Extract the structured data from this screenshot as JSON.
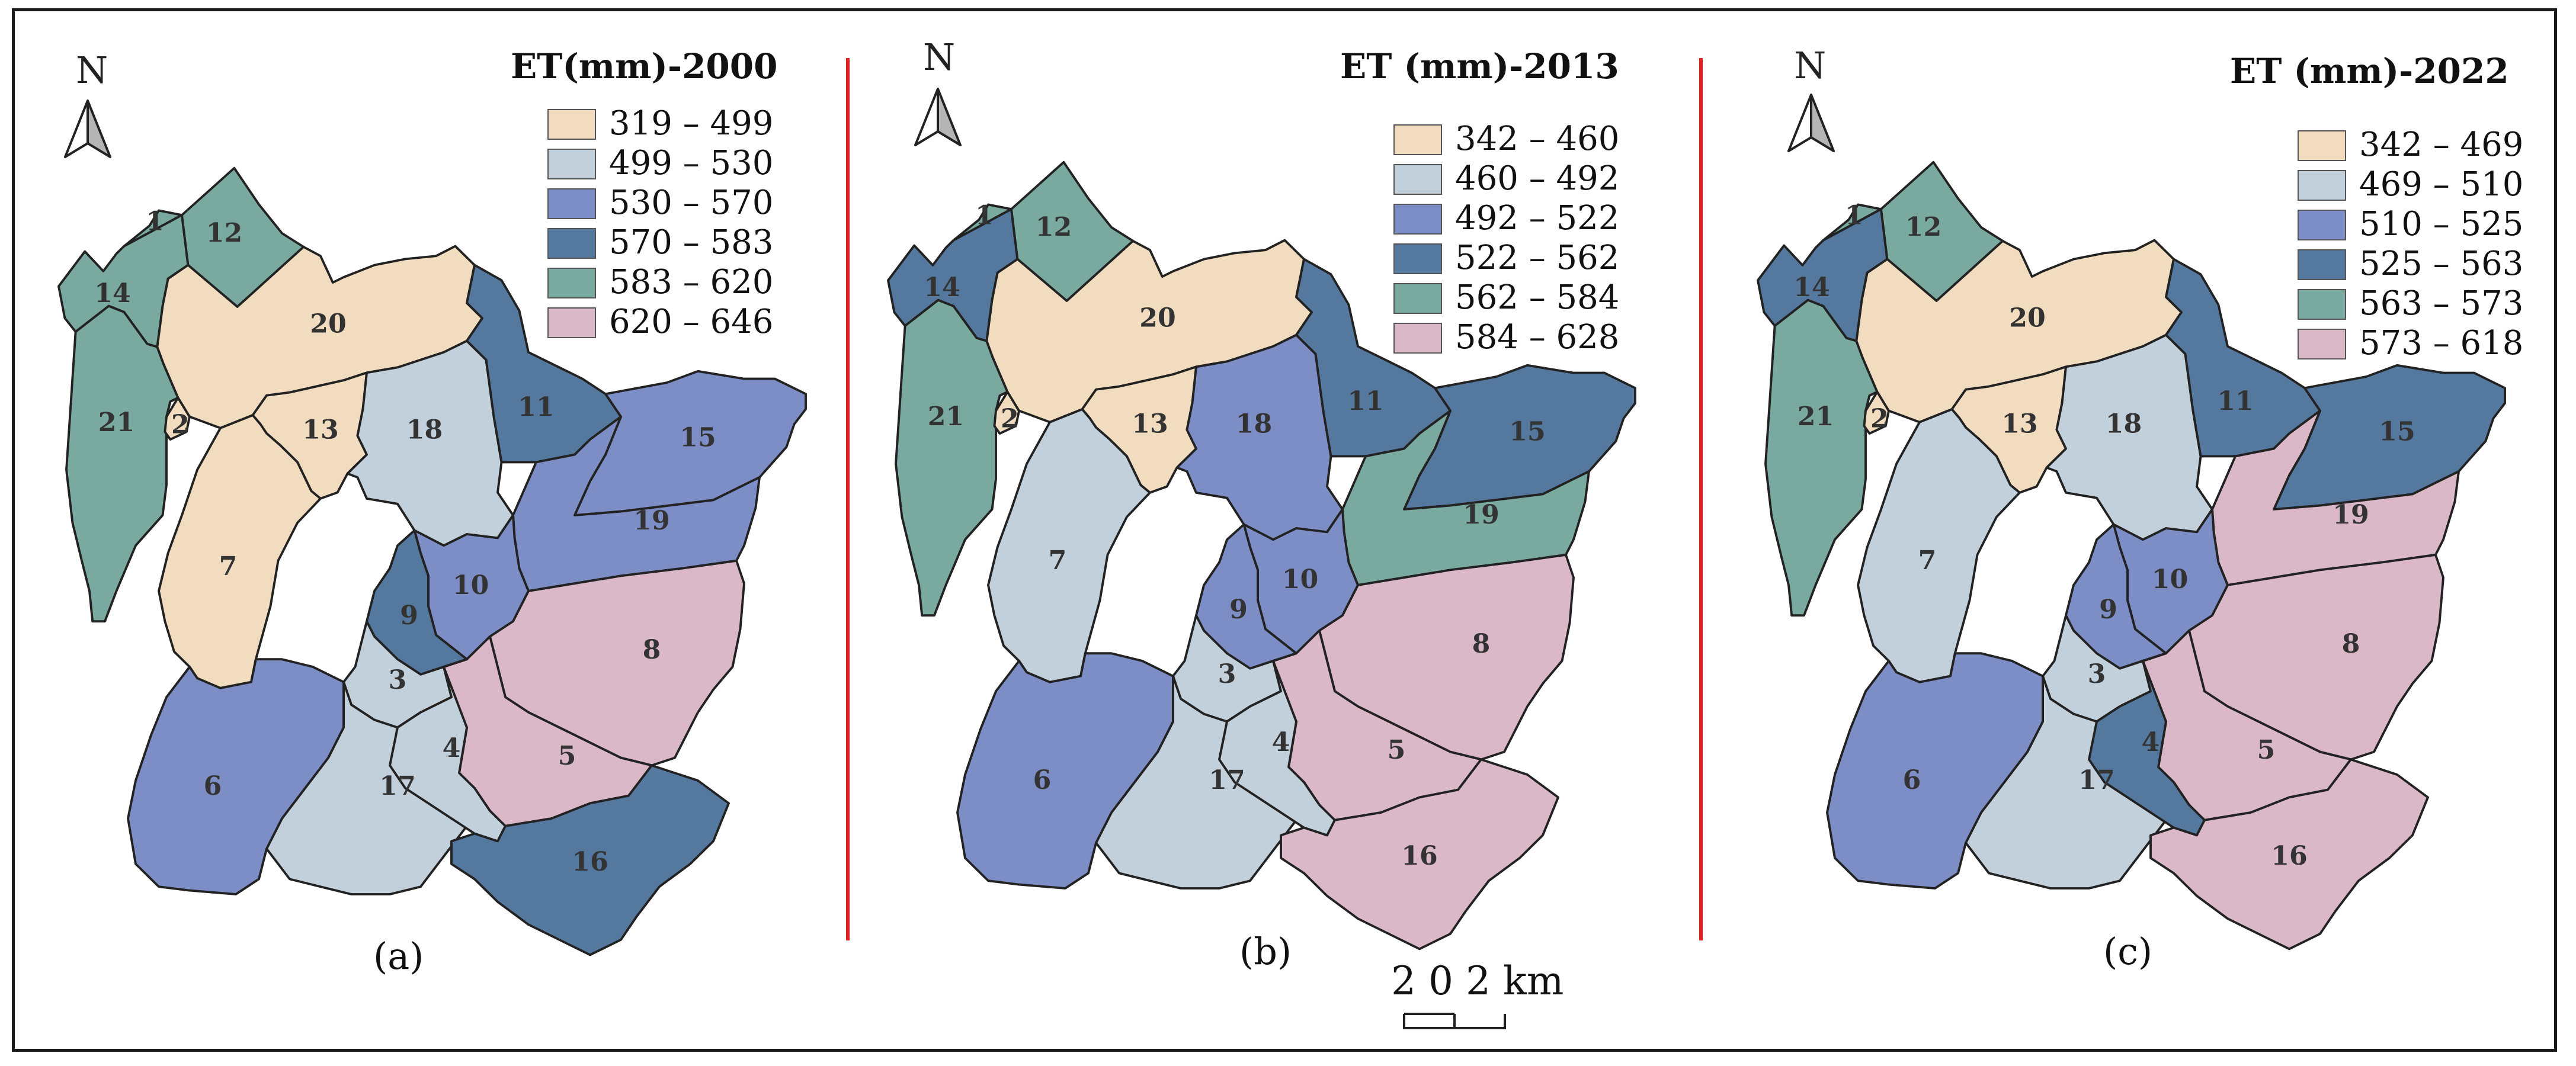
{
  "panels": [
    {
      "title": "ET(mm)-2000",
      "north": "N",
      "label": "(a)",
      "legend": [
        {
          "range": "319 – 499",
          "color": "#f2dcbf"
        },
        {
          "range": "499 – 530",
          "color": "#c2d0dc"
        },
        {
          "range": "530 – 570",
          "color": "#7d8dc5"
        },
        {
          "range": "570 – 583",
          "color": "#54789e"
        },
        {
          "range": "583 – 620",
          "color": "#79a99f"
        },
        {
          "range": "620 – 646",
          "color": "#dbb8c8"
        }
      ],
      "region_class": {
        "1": 4,
        "12": 4,
        "14": 4,
        "21": 4,
        "2": 0,
        "20": 0,
        "13": 0,
        "7": 0,
        "18": 1,
        "11": 3,
        "15": 2,
        "19": 2,
        "10": 2,
        "9": 3,
        "8": 5,
        "5": 5,
        "3": 1,
        "17": 1,
        "4": 1,
        "6": 2,
        "16": 3
      }
    },
    {
      "title": "ET (mm)-2013",
      "north": "N",
      "label": "(b)",
      "legend": [
        {
          "range": "342 – 460",
          "color": "#f2dcbf"
        },
        {
          "range": "460 – 492",
          "color": "#c2d0dc"
        },
        {
          "range": "492 – 522",
          "color": "#7d8dc5"
        },
        {
          "range": "522 – 562",
          "color": "#54789e"
        },
        {
          "range": "562 – 584",
          "color": "#79a99f"
        },
        {
          "range": "584 – 628",
          "color": "#dbb8c8"
        }
      ],
      "region_class": {
        "1": 4,
        "12": 4,
        "14": 3,
        "21": 4,
        "2": 0,
        "20": 0,
        "13": 0,
        "7": 1,
        "18": 2,
        "11": 3,
        "15": 3,
        "19": 4,
        "10": 2,
        "9": 2,
        "8": 5,
        "5": 5,
        "3": 1,
        "17": 1,
        "4": 1,
        "6": 2,
        "16": 5
      }
    },
    {
      "title": "ET (mm)-2022",
      "north": "N",
      "label": "(c)",
      "legend": [
        {
          "range": "342 – 469",
          "color": "#f2dcbf"
        },
        {
          "range": "469 – 510",
          "color": "#c2d0dc"
        },
        {
          "range": "510 – 525",
          "color": "#7d8dc5"
        },
        {
          "range": "525 – 563",
          "color": "#54789e"
        },
        {
          "range": "563 – 573",
          "color": "#79a99f"
        },
        {
          "range": "573 – 618",
          "color": "#dbb8c8"
        }
      ],
      "region_class": {
        "1": 4,
        "12": 4,
        "14": 3,
        "21": 4,
        "2": 0,
        "20": 0,
        "13": 0,
        "7": 1,
        "18": 1,
        "11": 3,
        "15": 3,
        "19": 5,
        "10": 2,
        "9": 2,
        "8": 5,
        "5": 5,
        "3": 1,
        "17": 1,
        "4": 3,
        "6": 2,
        "16": 5
      }
    }
  ],
  "scale_bar": {
    "text": "2 0 2 km"
  },
  "divider_color": "#e02020"
}
